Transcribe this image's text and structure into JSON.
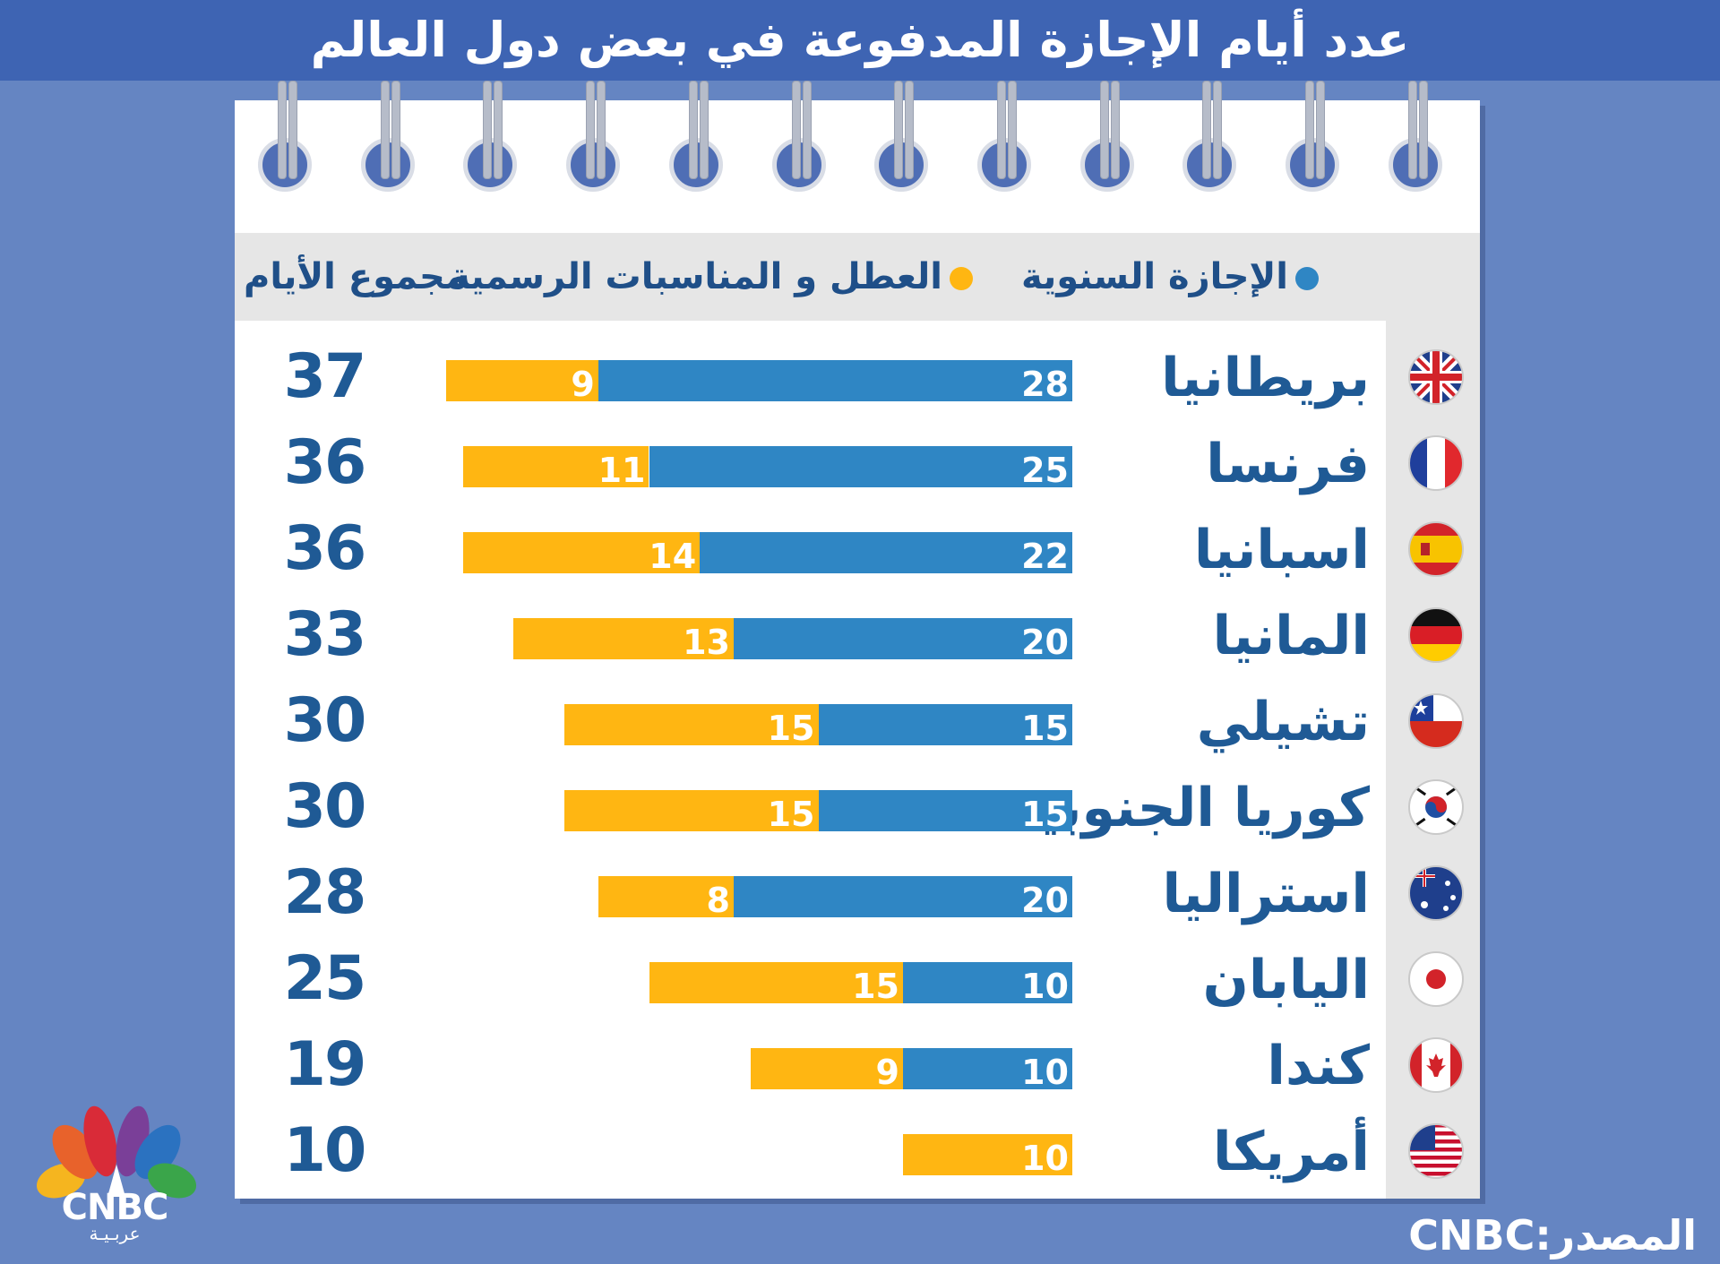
{
  "title": "عدد أيام الإجازة المدفوعة في بعض دول العالم",
  "legend": {
    "annual": "الإجازة السنوية",
    "holidays": "العطل و المناسبات الرسمية",
    "total_header": "مجموع الأيام"
  },
  "source": "المصدر:CNBC",
  "logo": {
    "name": "CNBC",
    "sub": "عربـيـة"
  },
  "colors": {
    "annual": "#2f86c4",
    "holidays": "#ffb612",
    "header": "#3e64b3",
    "background": "#6585c2",
    "text": "#1f5a95"
  },
  "chart_data": {
    "type": "bar",
    "orientation": "horizontal-stacked",
    "title": "عدد أيام الإجازة المدفوعة في بعض دول العالم",
    "series_names": [
      "الإجازة السنوية",
      "العطل و المناسبات الرسمية"
    ],
    "rows": [
      {
        "country": "بريطانيا",
        "flag": "uk-flag-icon",
        "annual": "28",
        "holidays": "9",
        "total": "37"
      },
      {
        "country": "فرنسا",
        "flag": "france-flag-icon",
        "annual": "25",
        "holidays": "11",
        "total": "36"
      },
      {
        "country": "اسبانيا",
        "flag": "spain-flag-icon",
        "annual": "22",
        "holidays": "14",
        "total": "36"
      },
      {
        "country": "المانيا",
        "flag": "germany-flag-icon",
        "annual": "20",
        "holidays": "13",
        "total": "33"
      },
      {
        "country": "تشيلي",
        "flag": "chile-flag-icon",
        "annual": "15",
        "holidays": "15",
        "total": "30"
      },
      {
        "country": "كوريا الجنوبية",
        "flag": "south-korea-flag-icon",
        "annual": "15",
        "holidays": "15",
        "total": "30"
      },
      {
        "country": "استراليا",
        "flag": "australia-flag-icon",
        "annual": "20",
        "holidays": "8",
        "total": "28"
      },
      {
        "country": "اليابان",
        "flag": "japan-flag-icon",
        "annual": "10",
        "holidays": "15",
        "total": "25"
      },
      {
        "country": "كندا",
        "flag": "canada-flag-icon",
        "annual": "10",
        "holidays": "9",
        "total": "19"
      },
      {
        "country": "أمريكا",
        "flag": "usa-flag-icon",
        "annual": "0",
        "holidays": "10",
        "total": "10"
      }
    ]
  }
}
